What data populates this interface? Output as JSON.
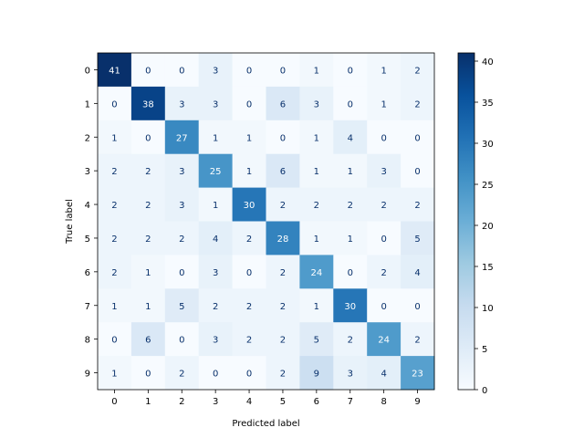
{
  "chart_data": {
    "type": "heatmap",
    "title": "",
    "xlabel": "Predicted label",
    "ylabel": "True label",
    "x_categories": [
      "0",
      "1",
      "2",
      "3",
      "4",
      "5",
      "6",
      "7",
      "8",
      "9"
    ],
    "y_categories": [
      "0",
      "1",
      "2",
      "3",
      "4",
      "5",
      "6",
      "7",
      "8",
      "9"
    ],
    "matrix": [
      [
        41,
        0,
        0,
        3,
        0,
        0,
        1,
        0,
        1,
        2
      ],
      [
        0,
        38,
        3,
        3,
        0,
        6,
        3,
        0,
        1,
        2
      ],
      [
        1,
        0,
        27,
        1,
        1,
        0,
        1,
        4,
        0,
        0
      ],
      [
        2,
        2,
        3,
        25,
        1,
        6,
        1,
        1,
        3,
        0
      ],
      [
        2,
        2,
        3,
        1,
        30,
        2,
        2,
        2,
        2,
        2
      ],
      [
        2,
        2,
        2,
        4,
        2,
        28,
        1,
        1,
        0,
        5
      ],
      [
        2,
        1,
        0,
        3,
        0,
        2,
        24,
        0,
        2,
        4
      ],
      [
        1,
        1,
        5,
        2,
        2,
        2,
        1,
        30,
        0,
        0
      ],
      [
        0,
        6,
        0,
        3,
        2,
        2,
        5,
        2,
        24,
        2
      ],
      [
        1,
        0,
        2,
        0,
        0,
        2,
        9,
        3,
        4,
        23
      ]
    ],
    "colormap": "Blues",
    "color_range": [
      0,
      41
    ],
    "colorbar_ticks": [
      "0",
      "5",
      "10",
      "15",
      "20",
      "25",
      "30",
      "35",
      "40"
    ],
    "grid": false
  }
}
